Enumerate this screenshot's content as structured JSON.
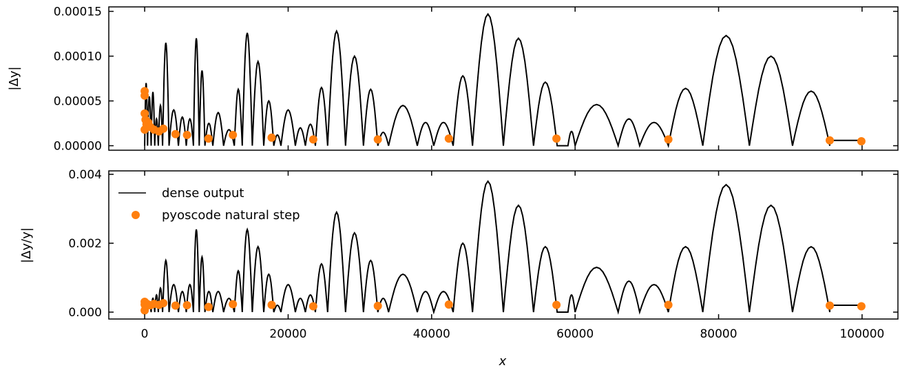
{
  "colors": {
    "dense": "#000000",
    "natural": "#ff7f0e"
  },
  "legend": {
    "dense_label": "dense output",
    "natural_label": "pyoscode natural step",
    "placement": "upper-left of bottom panel"
  },
  "chart_data": [
    {
      "type": "line",
      "panel": "top",
      "ylabel": "|Δy|",
      "xlabel": "",
      "xlim": [
        -5000,
        105000
      ],
      "ylim": [
        -5e-06,
        0.000155
      ],
      "xticks": [
        0,
        20000,
        40000,
        60000,
        80000,
        100000
      ],
      "yticks": [
        0.0,
        5e-05,
        0.0001,
        0.00015
      ],
      "ytick_labels": [
        "0.00000",
        "0.00005",
        "0.00010",
        "0.00015"
      ],
      "dense_segments": [
        [
          0,
          400,
          7e-05
        ],
        [
          400,
          900,
          5.5e-05
        ],
        [
          900,
          1400,
          6e-05
        ],
        [
          1400,
          1900,
          3e-05
        ],
        [
          1900,
          2500,
          4.5e-05
        ],
        [
          2500,
          3400,
          0.000115
        ],
        [
          3400,
          4700,
          4e-05
        ],
        [
          4700,
          5800,
          3.2e-05
        ],
        [
          5800,
          6800,
          3e-05
        ],
        [
          6800,
          7600,
          0.00012
        ],
        [
          7600,
          8400,
          8.4e-05
        ],
        [
          8400,
          9500,
          2.5e-05
        ],
        [
          9500,
          11000,
          3.7e-05
        ],
        [
          11000,
          12500,
          1.8e-05
        ],
        [
          12500,
          13600,
          6.3e-05
        ],
        [
          13600,
          15000,
          0.000126
        ],
        [
          15000,
          16600,
          9.4e-05
        ],
        [
          16600,
          18000,
          5e-05
        ],
        [
          18000,
          19000,
          1.2e-05
        ],
        [
          19000,
          21000,
          4e-05
        ],
        [
          21000,
          22400,
          2e-05
        ],
        [
          22400,
          23800,
          2.4e-05
        ],
        [
          23800,
          25500,
          6.5e-05
        ],
        [
          25500,
          28000,
          0.000128
        ],
        [
          28000,
          30500,
          0.0001
        ],
        [
          30500,
          32500,
          6.3e-05
        ],
        [
          32500,
          34000,
          1.5e-05
        ],
        [
          34000,
          38000,
          4.5e-05
        ],
        [
          38000,
          40300,
          2.6e-05
        ],
        [
          40300,
          43000,
          2.6e-05
        ],
        [
          43000,
          45700,
          7.8e-05
        ],
        [
          45700,
          50000,
          0.000147
        ],
        [
          50000,
          54200,
          0.00012
        ],
        [
          54200,
          57500,
          7.1e-05
        ],
        [
          57500,
          59000,
          0.0
        ],
        [
          59000,
          60000,
          1.6e-05
        ],
        [
          60000,
          66000,
          4.6e-05
        ],
        [
          66000,
          69000,
          3e-05
        ],
        [
          69000,
          73000,
          2.6e-05
        ],
        [
          73000,
          77800,
          6.4e-05
        ],
        [
          77800,
          84300,
          0.000123
        ],
        [
          84300,
          90300,
          0.0001
        ],
        [
          90300,
          95500,
          6.1e-05
        ]
      ],
      "dense_flat": {
        "x": [
          95500,
          100000
        ],
        "y": 6e-06
      },
      "natural_steps": {
        "x": [
          0,
          0,
          0,
          0,
          120,
          250,
          500,
          800,
          1300,
          2000,
          2600,
          4300,
          5900,
          8900,
          12300,
          17700,
          23500,
          32500,
          42400,
          57400,
          73000,
          95500,
          99900
        ],
        "y": [
          6.1e-05,
          5.6e-05,
          3.6e-05,
          1.8e-05,
          2.9e-05,
          2.4e-05,
          2.6e-05,
          2.1e-05,
          1.8e-05,
          1.6e-05,
          1.9e-05,
          1.3e-05,
          1.2e-05,
          8e-06,
          1.2e-05,
          9e-06,
          7e-06,
          7e-06,
          8e-06,
          8e-06,
          7e-06,
          6e-06,
          5e-06
        ]
      }
    },
    {
      "type": "line",
      "panel": "bottom",
      "ylabel": "|Δy/y|",
      "xlabel": "x",
      "xlim": [
        -5000,
        105000
      ],
      "ylim": [
        -0.0002,
        0.0041
      ],
      "xticks": [
        0,
        20000,
        40000,
        60000,
        80000,
        100000
      ],
      "xtick_labels": [
        "0",
        "20000",
        "40000",
        "60000",
        "80000",
        "100000"
      ],
      "yticks": [
        0.0,
        0.002,
        0.004
      ],
      "ytick_labels": [
        "0.000",
        "0.002",
        "0.004"
      ],
      "dense_segments": [
        [
          0,
          400,
          0.0002
        ],
        [
          400,
          900,
          0.00025
        ],
        [
          900,
          1400,
          0.0004
        ],
        [
          1400,
          1900,
          0.0005
        ],
        [
          1900,
          2500,
          0.0007
        ],
        [
          2500,
          3400,
          0.0015
        ],
        [
          3400,
          4700,
          0.0008
        ],
        [
          4700,
          5800,
          0.0006
        ],
        [
          5800,
          6800,
          0.0008
        ],
        [
          6800,
          7600,
          0.0024
        ],
        [
          7600,
          8400,
          0.0016
        ],
        [
          8400,
          9500,
          0.0006
        ],
        [
          9500,
          11000,
          0.0006
        ],
        [
          11000,
          12500,
          0.0004
        ],
        [
          12500,
          13600,
          0.0012
        ],
        [
          13600,
          15000,
          0.0024
        ],
        [
          15000,
          16600,
          0.0019
        ],
        [
          16600,
          18000,
          0.0011
        ],
        [
          18000,
          19000,
          0.0002
        ],
        [
          19000,
          21000,
          0.0008
        ],
        [
          21000,
          22400,
          0.0004
        ],
        [
          22400,
          23800,
          0.0005
        ],
        [
          23800,
          25500,
          0.0014
        ],
        [
          25500,
          28000,
          0.0029
        ],
        [
          28000,
          30500,
          0.0023
        ],
        [
          30500,
          32500,
          0.0015
        ],
        [
          32500,
          34000,
          0.0004
        ],
        [
          34000,
          38000,
          0.0011
        ],
        [
          38000,
          40300,
          0.0006
        ],
        [
          40300,
          43000,
          0.0006
        ],
        [
          43000,
          45700,
          0.002
        ],
        [
          45700,
          50000,
          0.0038
        ],
        [
          50000,
          54200,
          0.0031
        ],
        [
          54200,
          57500,
          0.0019
        ],
        [
          57500,
          59000,
          0.0
        ],
        [
          59000,
          60000,
          0.0005
        ],
        [
          60000,
          66000,
          0.0013
        ],
        [
          66000,
          69000,
          0.0009
        ],
        [
          69000,
          73000,
          0.0008
        ],
        [
          73000,
          77800,
          0.0019
        ],
        [
          77800,
          84300,
          0.0037
        ],
        [
          84300,
          90300,
          0.0031
        ],
        [
          90300,
          95500,
          0.0019
        ]
      ],
      "dense_flat": {
        "x": [
          95500,
          100000
        ],
        "y": 0.0002
      },
      "natural_steps": {
        "x": [
          0,
          0,
          0,
          120,
          250,
          500,
          800,
          1300,
          2000,
          2600,
          4300,
          5900,
          8900,
          12300,
          17700,
          23500,
          32500,
          42400,
          57400,
          73000,
          95500,
          99900
        ],
        "y": [
          5e-05,
          0.00022,
          0.0003,
          0.00018,
          0.00025,
          0.00022,
          0.0002,
          0.00024,
          0.00021,
          0.00026,
          0.00019,
          0.0002,
          0.00015,
          0.00023,
          0.00021,
          0.00017,
          0.00018,
          0.00022,
          0.00021,
          0.00021,
          0.00019,
          0.00017
        ]
      }
    }
  ]
}
